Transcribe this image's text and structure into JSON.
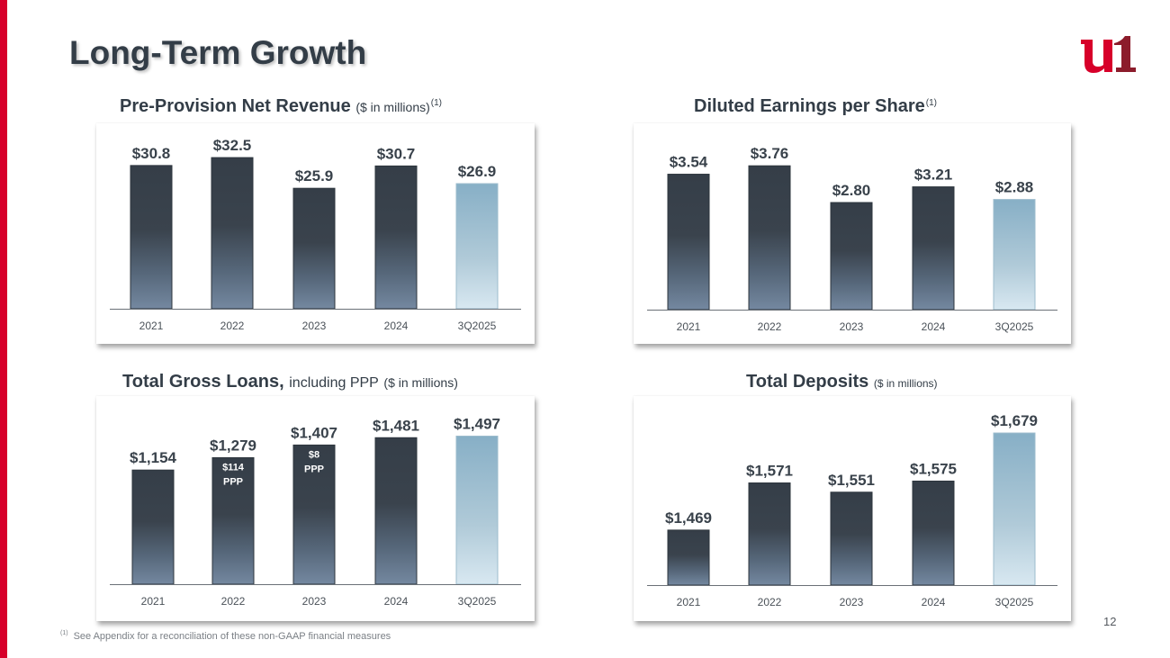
{
  "page": {
    "title": "Long-Term Growth",
    "page_number": "12",
    "footnote_marker": "(1)",
    "footnote": "See Appendix for a reconciliation of these non-GAAP financial measures",
    "brand_color": "#d7002a",
    "brand_color_dark": "#8c1c2b",
    "logo": "u1-logo"
  },
  "chart_data": [
    {
      "id": "ppnr",
      "type": "bar",
      "title": "Pre-Provision Net Revenue",
      "title_suffix": "($ in millions)",
      "title_footnote": "(1)",
      "categories": [
        "2021",
        "2022",
        "2023",
        "2024",
        "3Q2025"
      ],
      "values": [
        30.8,
        32.5,
        25.9,
        30.7,
        26.9
      ],
      "data_labels": [
        "$30.8",
        "$32.5",
        "$25.9",
        "$30.7",
        "$26.9"
      ],
      "highlight_last": true,
      "xlabel": "",
      "ylabel": "",
      "ylim": [
        0,
        36
      ],
      "grid": false,
      "legend": "none"
    },
    {
      "id": "eps",
      "type": "bar",
      "title": "Diluted Earnings per Share",
      "title_suffix": "",
      "title_footnote": "(1)",
      "categories": [
        "2021",
        "2022",
        "2023",
        "2024",
        "3Q2025"
      ],
      "values": [
        3.54,
        3.76,
        2.8,
        3.21,
        2.88
      ],
      "data_labels": [
        "$3.54",
        "$3.76",
        "$2.80",
        "$3.21",
        "$2.88"
      ],
      "highlight_last": true,
      "xlabel": "",
      "ylabel": "",
      "ylim": [
        0,
        4.4
      ],
      "grid": false,
      "legend": "none"
    },
    {
      "id": "loans",
      "type": "bar",
      "title": "Total Gross Loans,",
      "title_suffix_main": "including PPP",
      "title_suffix": "($ in millions)",
      "title_footnote": "",
      "categories": [
        "2021",
        "2022",
        "2023",
        "2024",
        "3Q2025"
      ],
      "values": [
        1154,
        1279,
        1407,
        1481,
        1497
      ],
      "data_labels": [
        "$1,154",
        "$1,279",
        "$1,407",
        "$1,481",
        "$1,497"
      ],
      "inner_labels": [
        null,
        {
          "value": "$114",
          "label": "PPP"
        },
        {
          "value": "$8",
          "label": "PPP"
        },
        null,
        null
      ],
      "highlight_last": true,
      "xlabel": "",
      "ylabel": "",
      "ylim": [
        0,
        1720
      ],
      "grid": false,
      "legend": "none"
    },
    {
      "id": "deposits",
      "type": "bar",
      "title": "Total Deposits",
      "title_suffix": "($ in millions)",
      "title_footnote": "",
      "categories": [
        "2021",
        "2022",
        "2023",
        "2024",
        "3Q2025"
      ],
      "values": [
        1469,
        1571,
        1551,
        1575,
        1679
      ],
      "data_labels": [
        "$1,469",
        "$1,571",
        "$1,551",
        "$1,575",
        "$1,679"
      ],
      "highlight_last": true,
      "xlabel": "",
      "ylabel": "",
      "ylim": [
        1350,
        1720
      ],
      "grid": false,
      "legend": "none"
    }
  ]
}
